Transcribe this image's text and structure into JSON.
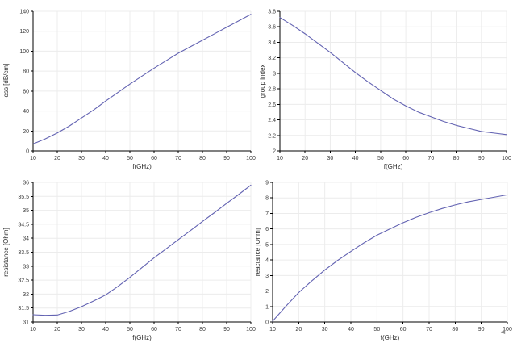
{
  "window": {
    "background_color": "#ffffff",
    "description": "four-plot simulation result view"
  },
  "cursor": {
    "glyph": "◄",
    "color": "#8f8f8f"
  },
  "style": {
    "line_color": "#6363b2",
    "grid_color": "#ececec",
    "axis_color": "#000000",
    "tick_label_color": "#3a3a3a",
    "axis_title_color": "#2b2b2b"
  },
  "chart_data": [
    {
      "id": "loss",
      "type": "line",
      "title": "",
      "xlabel": "f(GHz)",
      "ylabel": "loss [dB/cm]",
      "xlim": [
        10,
        100
      ],
      "ylim": [
        0,
        140
      ],
      "xticks": [
        10,
        20,
        30,
        40,
        50,
        60,
        70,
        80,
        90,
        100
      ],
      "yticks": [
        0,
        20,
        40,
        60,
        80,
        100,
        120,
        140
      ],
      "grid": true,
      "legend": "none",
      "x": [
        10,
        15,
        20,
        25,
        30,
        35,
        40,
        45,
        50,
        55,
        60,
        65,
        70,
        75,
        80,
        85,
        90,
        95,
        100
      ],
      "y": [
        7,
        12,
        18,
        25,
        33,
        41,
        50,
        58.5,
        67,
        75,
        83,
        90.5,
        98,
        104.5,
        111,
        117.5,
        124,
        130.5,
        137
      ],
      "layout": {
        "margins": {
          "l": 41,
          "r": 7,
          "t": 14,
          "b": 25
        },
        "ylabel_x": 10
      }
    },
    {
      "id": "group-index",
      "type": "line",
      "title": "",
      "xlabel": "f(GHz)",
      "ylabel": "group index",
      "xlim": [
        10,
        100
      ],
      "ylim": [
        2,
        3.8
      ],
      "xticks": [
        10,
        20,
        30,
        40,
        50,
        60,
        70,
        80,
        90,
        100
      ],
      "yticks": [
        2,
        2.2,
        2.4,
        2.6,
        2.8,
        3,
        3.2,
        3.4,
        3.6,
        3.8
      ],
      "grid": true,
      "legend": "none",
      "x": [
        10,
        15,
        20,
        25,
        30,
        35,
        40,
        45,
        50,
        55,
        60,
        65,
        70,
        75,
        80,
        85,
        90,
        95,
        100
      ],
      "y": [
        3.72,
        3.62,
        3.51,
        3.39,
        3.27,
        3.14,
        3.01,
        2.89,
        2.78,
        2.67,
        2.58,
        2.5,
        2.44,
        2.38,
        2.33,
        2.29,
        2.25,
        2.23,
        2.21
      ],
      "layout": {
        "margins": {
          "l": 29,
          "r": 8,
          "t": 14,
          "b": 25
        },
        "ylabel_x": 10
      }
    },
    {
      "id": "resistance",
      "type": "line",
      "title": "",
      "xlabel": "f(GHz)",
      "ylabel": "resistance [Ohm]",
      "xlim": [
        10,
        100
      ],
      "ylim": [
        31,
        36
      ],
      "xticks": [
        10,
        20,
        30,
        40,
        50,
        60,
        70,
        80,
        90,
        100
      ],
      "yticks": [
        31,
        31.5,
        32,
        32.5,
        33,
        33.5,
        34,
        34.5,
        35,
        35.5,
        36
      ],
      "grid": true,
      "legend": "none",
      "x": [
        10,
        15,
        20,
        25,
        30,
        35,
        40,
        45,
        50,
        55,
        60,
        65,
        70,
        75,
        80,
        85,
        90,
        95,
        100
      ],
      "y": [
        31.26,
        31.24,
        31.25,
        31.38,
        31.55,
        31.75,
        31.97,
        32.27,
        32.6,
        32.95,
        33.3,
        33.62,
        33.95,
        34.27,
        34.6,
        34.92,
        35.25,
        35.57,
        35.9
      ],
      "layout": {
        "margins": {
          "l": 41,
          "r": 7,
          "t": 14,
          "b": 26
        },
        "ylabel_x": 10
      }
    },
    {
      "id": "reactance",
      "type": "line",
      "title": "",
      "xlabel": "f(GHz)",
      "ylabel": "reactance [Ohm]",
      "xlim": [
        10,
        100
      ],
      "ylim": [
        0,
        9
      ],
      "xticks": [
        10,
        20,
        30,
        40,
        50,
        60,
        70,
        80,
        90,
        100
      ],
      "yticks": [
        0,
        1,
        2,
        3,
        4,
        5,
        6,
        7,
        8,
        9
      ],
      "grid": true,
      "legend": "none",
      "x": [
        10,
        15,
        20,
        25,
        30,
        35,
        40,
        45,
        50,
        55,
        60,
        65,
        70,
        75,
        80,
        85,
        90,
        95,
        100
      ],
      "y": [
        0.05,
        1.0,
        1.9,
        2.65,
        3.35,
        3.98,
        4.55,
        5.1,
        5.6,
        6.0,
        6.4,
        6.75,
        7.05,
        7.32,
        7.55,
        7.75,
        7.9,
        8.05,
        8.2
      ],
      "layout": {
        "margins": {
          "l": 20,
          "r": 7,
          "t": 14,
          "b": 26
        },
        "ylabel_x": 4
      }
    }
  ]
}
